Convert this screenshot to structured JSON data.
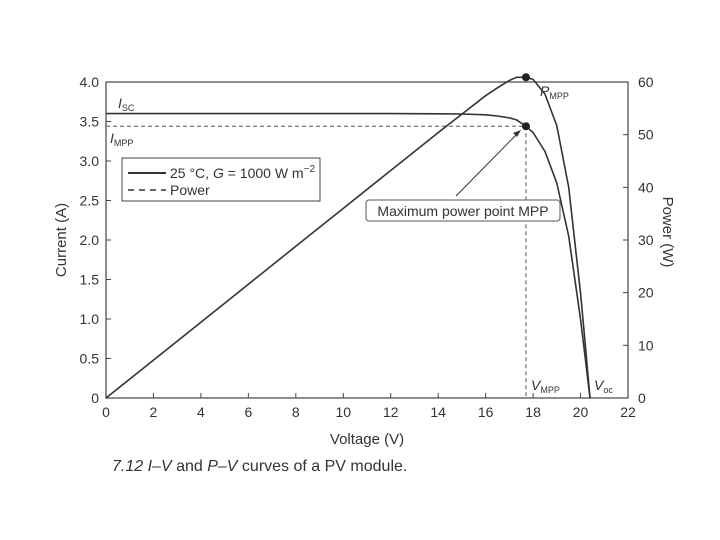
{
  "chart_data": {
    "type": "line",
    "title": "",
    "caption": {
      "number": "7.12",
      "iv": "I–V",
      "and": "and",
      "pv": "P–V",
      "rest": "curves of a PV module."
    },
    "xlabel": "Voltage (V)",
    "ylabel_left": "Current (A)",
    "ylabel_right": "Power (W)",
    "xlim": [
      0,
      22
    ],
    "ylim_left": [
      0,
      4.0
    ],
    "ylim_right": [
      0,
      60
    ],
    "x_ticks": [
      "0",
      "2",
      "4",
      "6",
      "8",
      "10",
      "12",
      "14",
      "16",
      "18",
      "20",
      "22"
    ],
    "y_left_ticks": [
      "0",
      "0.5",
      "1.0",
      "1.5",
      "2.0",
      "2.5",
      "3.0",
      "3.5",
      "4.0"
    ],
    "y_right_ticks": [
      "0",
      "10",
      "20",
      "30",
      "40",
      "50",
      "60"
    ],
    "legend": {
      "placement": "upper-left",
      "series_label_prefix": "25 °C, ",
      "series_label_italic": "G",
      "series_label_rest": " = 1000 W m",
      "series_label_sup": "−2",
      "power_label": "Power"
    },
    "series": [
      {
        "name": "25 °C, G = 1000 W m−2",
        "axis": "left",
        "style": "solid",
        "x": [
          0,
          2,
          4,
          6,
          8,
          10,
          12,
          14,
          15,
          16,
          16.5,
          17,
          17.3,
          17.7,
          18,
          18.5,
          19,
          19.5,
          20,
          20.2,
          20.4
        ],
        "y": [
          3.6,
          3.6,
          3.6,
          3.6,
          3.6,
          3.6,
          3.6,
          3.598,
          3.595,
          3.585,
          3.57,
          3.545,
          3.52,
          3.44,
          3.36,
          3.12,
          2.72,
          2.05,
          1.0,
          0.5,
          0
        ]
      },
      {
        "name": "Power",
        "axis": "right",
        "style": "solid",
        "x": [
          0,
          2,
          4,
          6,
          8,
          10,
          12,
          14,
          15,
          16,
          16.5,
          17,
          17.3,
          17.7,
          18,
          18.5,
          19,
          19.5,
          20,
          20.2,
          20.4
        ],
        "y": [
          0,
          7.2,
          14.4,
          21.6,
          28.8,
          36.0,
          43.2,
          50.4,
          53.9,
          57.4,
          58.9,
          60.3,
          60.9,
          60.9,
          60.5,
          57.7,
          51.7,
          40.0,
          20.0,
          10.1,
          0
        ]
      }
    ],
    "mpp": {
      "voltage": 17.7,
      "current": 3.44,
      "power": 60.9
    },
    "isc": 3.6,
    "voc": 20.4,
    "annotations": {
      "isc_main": "I",
      "isc_sub": "SC",
      "impp_main": "I",
      "impp_sub": "MPP",
      "pmpp_main": "P",
      "pmpp_sub": "MPP",
      "vmpp_main": "V",
      "vmpp_sub": "MPP",
      "voc_main": "V",
      "voc_sub": "oc",
      "mpp_box": "Maximum power point MPP"
    },
    "colors": {
      "curve": "#333333",
      "frame": "#444444",
      "dashed": "#555555"
    }
  }
}
